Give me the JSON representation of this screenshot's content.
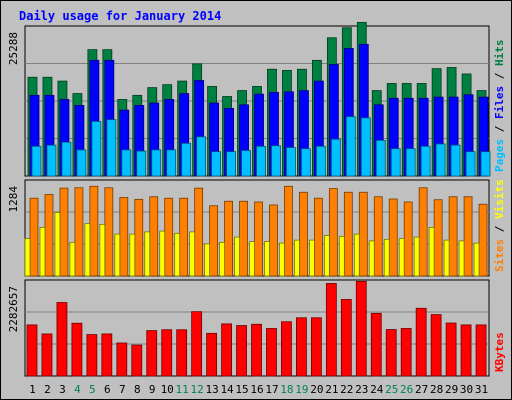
{
  "chart_data": {
    "type": "bar",
    "title": "Daily usage for January 2014",
    "days": [
      "1",
      "2",
      "3",
      "4",
      "5",
      "6",
      "7",
      "8",
      "9",
      "10",
      "11",
      "12",
      "13",
      "14",
      "15",
      "16",
      "17",
      "18",
      "19",
      "20",
      "21",
      "22",
      "23",
      "24",
      "25",
      "26",
      "27",
      "28",
      "29",
      "30",
      "31"
    ],
    "weekend_days": [
      4,
      5,
      11,
      12,
      18,
      19,
      25,
      26
    ],
    "panels": [
      {
        "id": "hits",
        "ymax": 25288,
        "ymax_label": "25288",
        "legend": [
          {
            "label": "Pages",
            "color": "#00c0ff"
          },
          {
            "label": "Files",
            "color": "#0000ff"
          },
          {
            "label": "Hits",
            "color": "#008040"
          }
        ],
        "series": [
          {
            "name": "Hits",
            "color": "#008040",
            "values": [
              16650,
              16650,
              16000,
              13900,
              21300,
              21300,
              12900,
              13600,
              14900,
              15400,
              16000,
              18900,
              15100,
              13400,
              14400,
              15100,
              18000,
              17800,
              18000,
              19500,
              23300,
              25000,
              25900,
              14400,
              15600,
              15600,
              15600,
              18100,
              18300,
              17200,
              14400
            ]
          },
          {
            "name": "Files",
            "color": "#0000ff",
            "values": [
              13600,
              13600,
              12900,
              11900,
              19500,
              19500,
              11100,
              11900,
              12300,
              12900,
              13900,
              16100,
              12300,
              11400,
              12000,
              13800,
              14100,
              14200,
              14400,
              16000,
              18800,
              21500,
              22200,
              12000,
              13100,
              13100,
              13100,
              13300,
              13300,
              13700,
              13300
            ]
          },
          {
            "name": "Pages",
            "color": "#00c0ff",
            "values": [
              5000,
              5200,
              5700,
              4400,
              9200,
              9500,
              4400,
              4200,
              4400,
              4400,
              5500,
              6600,
              4100,
              4100,
              4300,
              5000,
              5100,
              4800,
              4600,
              5000,
              6200,
              10000,
              9800,
              6000,
              4600,
              4600,
              5000,
              5400,
              5200,
              4100,
              4100
            ]
          }
        ]
      },
      {
        "id": "visits",
        "ymax": 1284,
        "ymax_label": "1284",
        "legend": [
          {
            "label": "Sites",
            "color": "#ff8000"
          },
          {
            "label": "Visits",
            "color": "#ffff00"
          }
        ],
        "series": [
          {
            "name": "Visits",
            "color": "#ff8000",
            "values": [
              1040,
              1090,
              1175,
              1180,
              1200,
              1180,
              1050,
              1025,
              1060,
              1040,
              1040,
              1175,
              940,
              1000,
              1000,
              990,
              950,
              1200,
              1120,
              1040,
              1170,
              1120,
              1120,
              1060,
              1030,
              990,
              1180,
              1020,
              1060,
              1060,
              960
            ]
          },
          {
            "name": "Sites",
            "color": "#ffff00",
            "values": [
              500,
              650,
              850,
              450,
              700,
              690,
              560,
              560,
              590,
              600,
              570,
              590,
              430,
              450,
              520,
              460,
              460,
              440,
              480,
              480,
              540,
              530,
              560,
              470,
              490,
              500,
              520,
              650,
              480,
              470,
              440
            ]
          }
        ]
      },
      {
        "id": "kbytes",
        "ymax": 2282657,
        "ymax_label": "2282657",
        "legend": [
          {
            "label": "KBytes",
            "color": "#ff0000"
          }
        ],
        "series": [
          {
            "name": "KBytes",
            "color": "#ff0000",
            "values": [
              1215000,
              1000000,
              1748000,
              1255000,
              985000,
              1000000,
              785000,
              735000,
              1080000,
              1100000,
              1100000,
              1530000,
              1015000,
              1240000,
              1200000,
              1230000,
              1130000,
              1290000,
              1385000,
              1385000,
              2200000,
              1820000,
              2250000,
              1490000,
              1105000,
              1130000,
              1610000,
              1460000,
              1260000,
              1215000,
              1215000
            ]
          }
        ]
      }
    ]
  }
}
